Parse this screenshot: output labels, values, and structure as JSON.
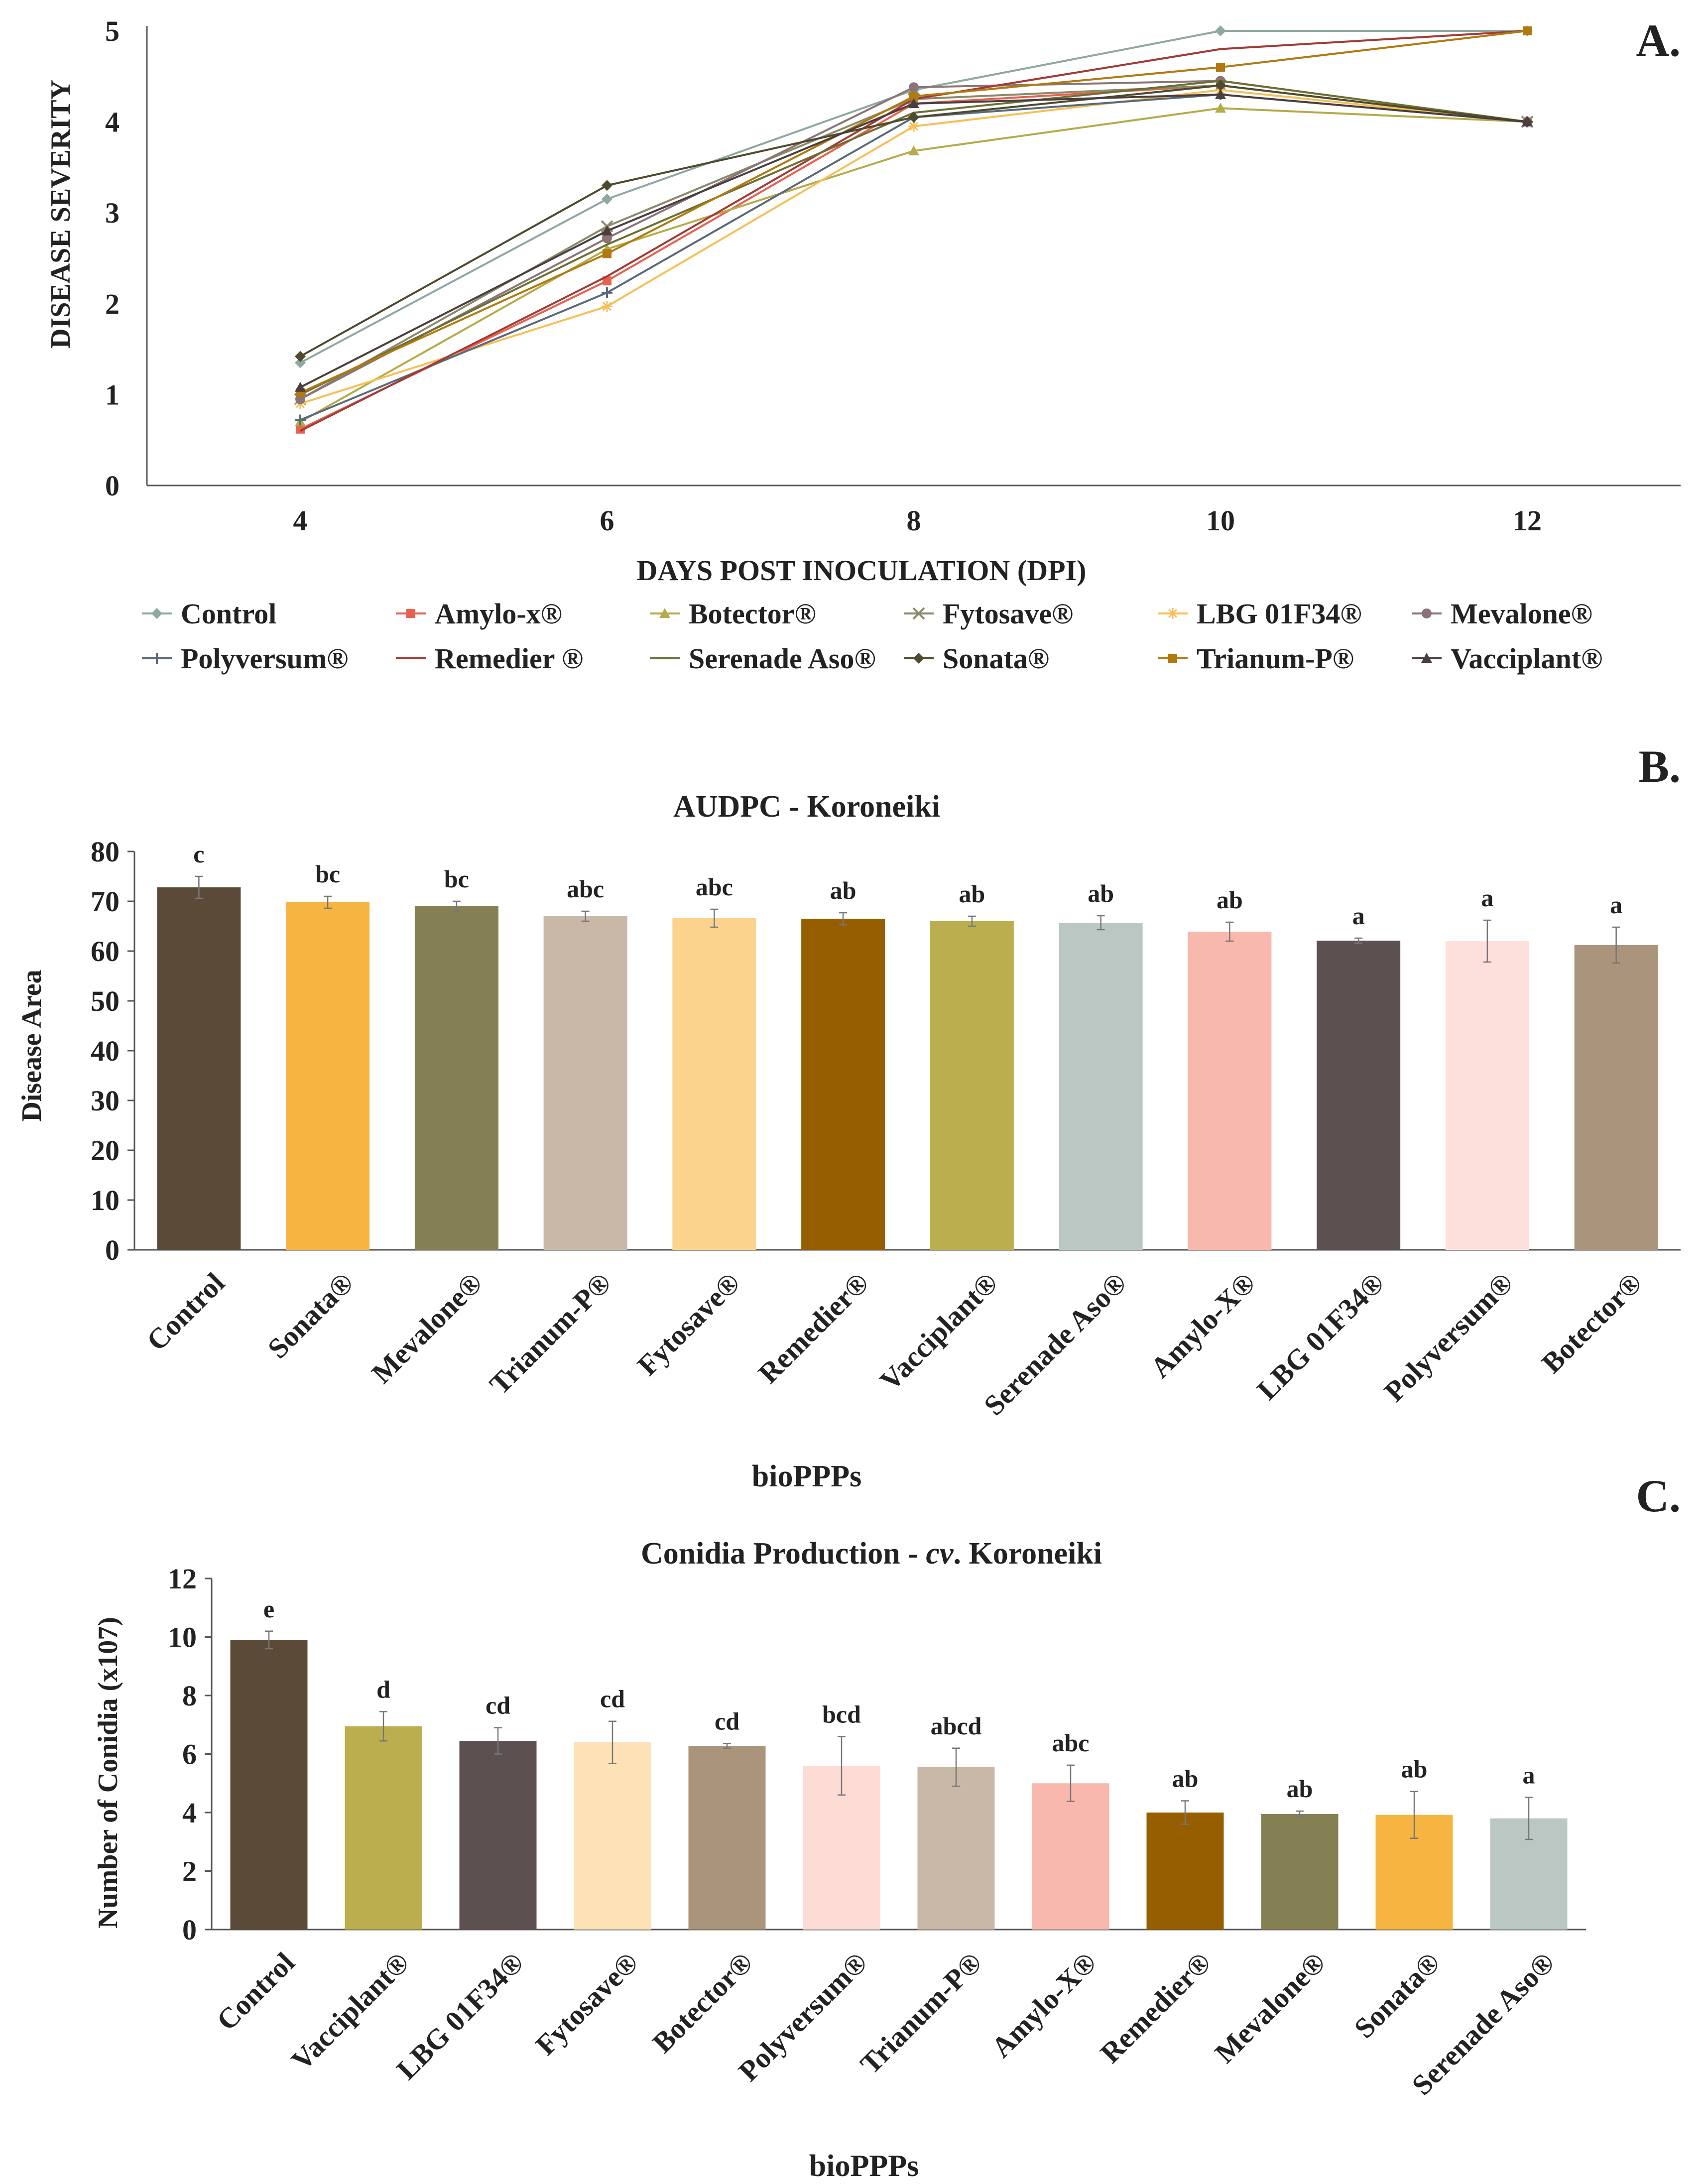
{
  "panels": [
    {
      "panel_label": "A.",
      "chart_data": {
        "type": "line",
        "title": "",
        "xlabel": "DAYS POST INOCULATION (DPI)",
        "ylabel": "DISEASE SEVERITY",
        "x": [
          4,
          6,
          8,
          10,
          12
        ],
        "xlim": [
          3,
          13
        ],
        "ylim": [
          0,
          5
        ],
        "yticks": [
          0,
          1,
          2,
          3,
          4,
          5
        ],
        "legend_position": "bottom",
        "series": [
          {
            "name": "Control",
            "color": "#8fa8a0",
            "marker": "diamond",
            "values": [
              1.35,
              3.15,
              4.35,
              5.0,
              5.0
            ]
          },
          {
            "name": "Amylo-x®",
            "color": "#e8604f",
            "marker": "square",
            "values": [
              0.62,
              2.25,
              4.2,
              4.4,
              4.0
            ]
          },
          {
            "name": "Botector®",
            "color": "#b5ab4a",
            "marker": "triangle",
            "values": [
              0.7,
              2.6,
              3.68,
              4.15,
              4.0
            ]
          },
          {
            "name": "Fytosave®",
            "color": "#8a8a6a",
            "marker": "x",
            "values": [
              0.95,
              2.85,
              4.25,
              4.4,
              4.0
            ]
          },
          {
            "name": "LBG 01F34®",
            "color": "#f6bf58",
            "marker": "star",
            "values": [
              0.9,
              1.97,
              3.95,
              4.35,
              4.0
            ]
          },
          {
            "name": "Mevalone®",
            "color": "#8a7478",
            "marker": "circle",
            "values": [
              0.95,
              2.72,
              4.38,
              4.45,
              4.0
            ]
          },
          {
            "name": "Polyversum®",
            "color": "#5a6a7a",
            "marker": "plus",
            "values": [
              0.72,
              2.12,
              4.05,
              4.3,
              4.0
            ]
          },
          {
            "name": "Remedier ®",
            "color": "#a23a36",
            "marker": "none",
            "values": [
              0.6,
              2.3,
              4.25,
              4.8,
              5.0
            ]
          },
          {
            "name": "Serenade Aso®",
            "color": "#6c6f33",
            "marker": "none",
            "values": [
              1.0,
              2.65,
              4.1,
              4.45,
              4.0
            ]
          },
          {
            "name": "Sonata®",
            "color": "#4e4a2e",
            "marker": "diamond",
            "values": [
              1.42,
              3.3,
              4.05,
              4.4,
              4.0
            ]
          },
          {
            "name": "Trianum-P®",
            "color": "#b07a10",
            "marker": "square",
            "values": [
              1.02,
              2.55,
              4.28,
              4.6,
              5.0
            ]
          },
          {
            "name": "Vacciplant®",
            "color": "#4a3e3e",
            "marker": "triangle",
            "values": [
              1.08,
              2.8,
              4.2,
              4.3,
              4.0
            ]
          }
        ]
      }
    },
    {
      "panel_label": "B.",
      "chart_data": {
        "type": "bar",
        "title": "AUDPC - Koroneiki",
        "xlabel": "bioPPPs",
        "ylabel": "Disease Area",
        "ylim": [
          0,
          80
        ],
        "yticks": [
          0,
          10,
          20,
          30,
          40,
          50,
          60,
          70,
          80
        ],
        "categories": [
          "Control",
          "Sonata®",
          "Mevalone®",
          "Trianum-P®",
          "Fytosave®",
          "Remedier®",
          "Vacciplant®",
          "Serenade Aso®",
          "Amylo-X®",
          "LBG 01F34®",
          "Polyversum®",
          "Botector®"
        ],
        "values": [
          72.8,
          69.8,
          69.0,
          67.0,
          66.6,
          66.5,
          66.0,
          65.7,
          63.9,
          62.1,
          62.0,
          61.2
        ],
        "errors": [
          2.2,
          1.2,
          1.0,
          1.0,
          1.8,
          1.2,
          1.0,
          1.4,
          1.9,
          0.5,
          4.2,
          3.6
        ],
        "letters": [
          "c",
          "bc",
          "bc",
          "abc",
          "abc",
          "ab",
          "ab",
          "ab",
          "ab",
          "a",
          "a",
          "a"
        ],
        "colors": [
          "#5c4a38",
          "#f6b441",
          "#857f54",
          "#c9b8a8",
          "#fbd38d",
          "#975e00",
          "#bbae4f",
          "#bac7c2",
          "#f8b8ad",
          "#5d5050",
          "#fde0db",
          "#ab947c"
        ]
      }
    },
    {
      "panel_label": "C.",
      "chart_data": {
        "type": "bar",
        "title_main": "Conidia Production - ",
        "title_italic": "cv",
        "title_tail": ". Koroneiki",
        "xlabel": "bioPPPs",
        "ylabel": "Number of Conidia (x107)",
        "ylim": [
          0,
          12
        ],
        "yticks": [
          0,
          2,
          4,
          6,
          8,
          10,
          12
        ],
        "categories": [
          "Control",
          "Vacciplant®",
          "LBG 01F34®",
          "Fytosave®",
          "Botector®",
          "Polyversum®",
          "Trianum-P®",
          "Amylo-X®",
          "Remedier®",
          "Mevalone®",
          "Sonata®",
          "Serenade Aso®"
        ],
        "values": [
          9.9,
          6.95,
          6.45,
          6.4,
          6.28,
          5.6,
          5.55,
          5.0,
          4.0,
          3.95,
          3.92,
          3.8
        ],
        "errors": [
          0.3,
          0.5,
          0.45,
          0.72,
          0.08,
          1.0,
          0.65,
          0.62,
          0.4,
          0.1,
          0.8,
          0.72
        ],
        "letters": [
          "e",
          "d",
          "cd",
          "cd",
          "cd",
          "bcd",
          "abcd",
          "abc",
          "ab",
          "ab",
          "ab",
          "a"
        ],
        "colors": [
          "#5c4a38",
          "#bbae4f",
          "#5d5050",
          "#fde2b8",
          "#ab947c",
          "#fddcd6",
          "#c9b8a8",
          "#f8b8ad",
          "#975e00",
          "#857f54",
          "#f6b441",
          "#bac7c2"
        ]
      }
    }
  ]
}
